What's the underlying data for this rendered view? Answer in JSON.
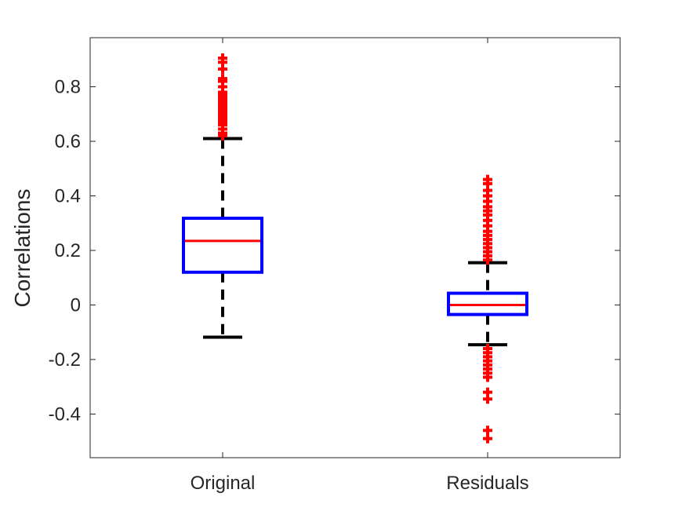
{
  "chart_data": {
    "type": "boxplot",
    "title": "",
    "xlabel": "",
    "ylabel": "Correlations",
    "ylim": [
      -0.56,
      0.98
    ],
    "yticks": [
      -0.4,
      -0.2,
      0,
      0.2,
      0.4,
      0.6,
      0.8
    ],
    "ytick_labels": [
      "-0.4",
      "-0.2",
      "0",
      "0.2",
      "0.4",
      "0.6",
      "0.8"
    ],
    "categories": [
      "Original",
      "Residuals"
    ],
    "boxes": [
      {
        "category": "Original",
        "whisker_low": -0.118,
        "q1": 0.12,
        "median": 0.235,
        "q3": 0.318,
        "whisker_high": 0.61,
        "outliers": [
          0.62,
          0.63,
          0.645,
          0.66,
          0.67,
          0.68,
          0.69,
          0.7,
          0.71,
          0.72,
          0.73,
          0.74,
          0.75,
          0.76,
          0.77,
          0.78,
          0.8,
          0.82,
          0.83,
          0.865,
          0.89,
          0.905
        ]
      },
      {
        "category": "Residuals",
        "whisker_low": -0.146,
        "q1": -0.035,
        "median": 0.0,
        "q3": 0.043,
        "whisker_high": 0.155,
        "outliers": [
          -0.49,
          -0.46,
          -0.345,
          -0.32,
          -0.265,
          -0.25,
          -0.235,
          -0.22,
          -0.205,
          -0.19,
          -0.175,
          -0.16,
          0.165,
          0.18,
          0.195,
          0.21,
          0.225,
          0.24,
          0.255,
          0.27,
          0.29,
          0.31,
          0.33,
          0.345,
          0.36,
          0.38,
          0.4,
          0.42,
          0.445,
          0.46
        ]
      }
    ],
    "colors": {
      "box": "#0000ff",
      "median": "#ff0000",
      "whisker": "#000000",
      "outlier": "#ff0000",
      "axis": "#262626"
    },
    "grid": false,
    "legend": "none"
  }
}
